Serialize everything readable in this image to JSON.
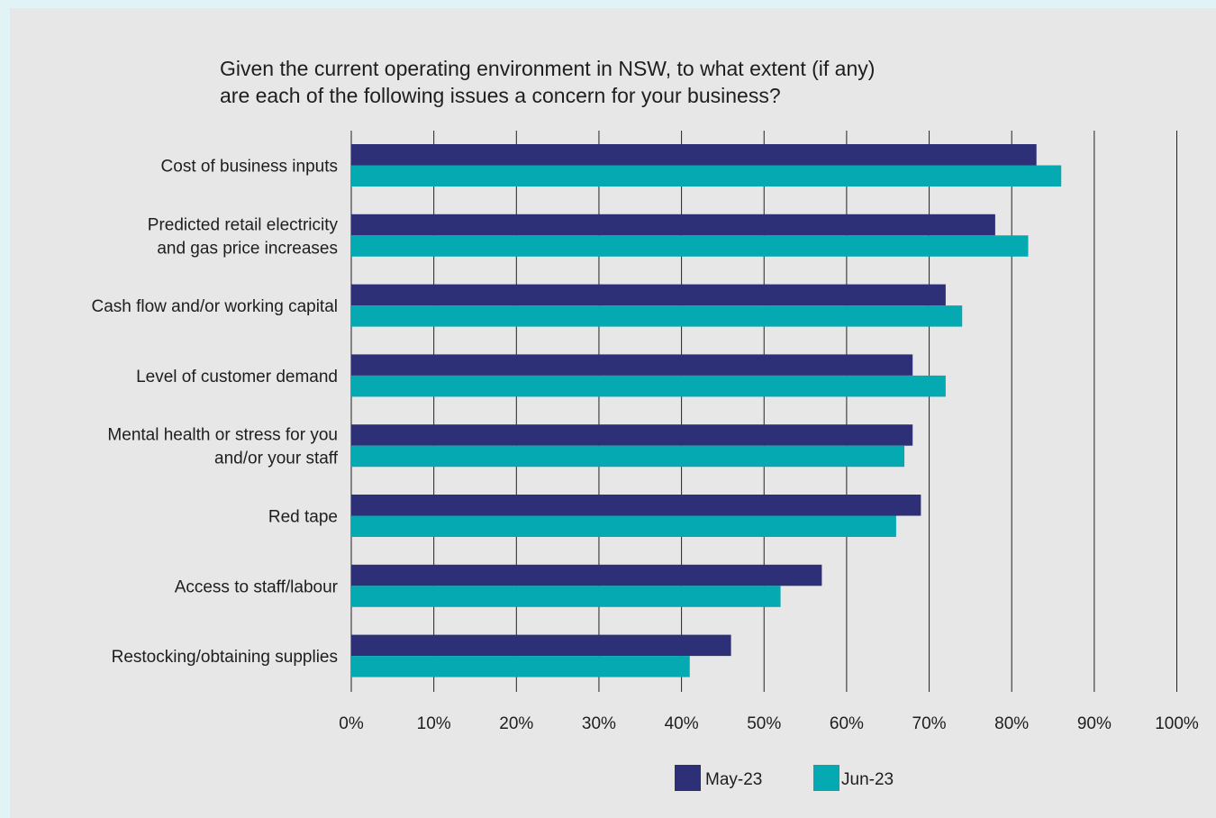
{
  "chart_data": {
    "type": "bar",
    "orientation": "horizontal",
    "title_lines": [
      "Given the current operating environment in NSW, to what extent (if any)",
      "are each of the following issues a concern for your business?"
    ],
    "categories": [
      [
        "Cost of business inputs"
      ],
      [
        "Predicted retail electricity",
        "and gas price increases"
      ],
      [
        "Cash flow and/or working capital"
      ],
      [
        "Level of customer demand"
      ],
      [
        "Mental health or stress for you",
        "and/or your staff"
      ],
      [
        "Red tape"
      ],
      [
        "Access to staff/labour"
      ],
      [
        "Restocking/obtaining supplies"
      ]
    ],
    "series": [
      {
        "name": "May-23",
        "color": "#2e3077",
        "values": [
          83,
          78,
          72,
          68,
          68,
          69,
          57,
          46
        ]
      },
      {
        "name": "Jun-23",
        "color": "#05a9b2",
        "values": [
          86,
          82,
          74,
          72,
          67,
          66,
          52,
          41
        ]
      }
    ],
    "xlim": [
      0,
      100
    ],
    "xticks": [
      0,
      10,
      20,
      30,
      40,
      50,
      60,
      70,
      80,
      90,
      100
    ],
    "tick_labels": [
      "0%",
      "10%",
      "20%",
      "30%",
      "40%",
      "50%",
      "60%",
      "70%",
      "80%",
      "90%",
      "100%"
    ],
    "grid": "vertical",
    "legend_position": "bottom-center",
    "colors": {
      "background": "#e7e7e7",
      "border": "#e2f3f6",
      "gridline": "#222222"
    }
  }
}
